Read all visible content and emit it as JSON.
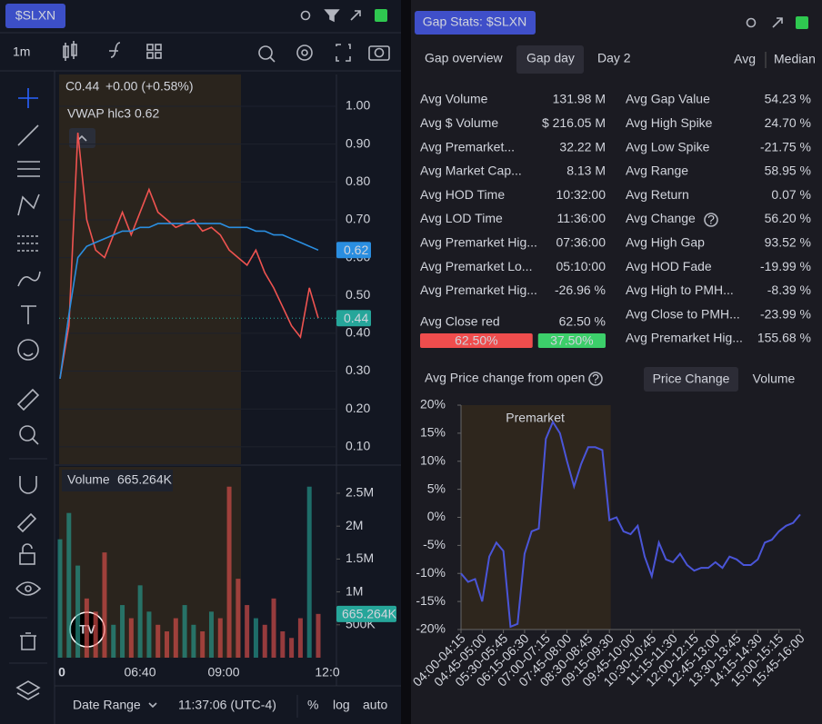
{
  "left": {
    "ticker": "$SLXN",
    "interval": "1m",
    "legend_c": "C",
    "legend_close": "0.44",
    "legend_change": "+0.00 (+0.58%)",
    "vwap_label": "VWAP hlc3",
    "vwap_value": "0.62",
    "volume_label": "Volume",
    "volume_value": "665.264K",
    "price": {
      "type": "line",
      "ylim": [
        0.054,
        1.084
      ],
      "yticks": [
        {
          "value": 0.1,
          "label": "0.10"
        },
        {
          "value": 0.2,
          "label": "0.20"
        },
        {
          "value": 0.3,
          "label": "0.30"
        },
        {
          "value": 0.4,
          "label": "0.40"
        },
        {
          "value": 0.5,
          "label": "0.50"
        },
        {
          "value": 0.6,
          "label": "0.60"
        },
        {
          "value": 0.7,
          "label": "0.70"
        },
        {
          "value": 0.8,
          "label": "0.80"
        },
        {
          "value": 0.9,
          "label": "0.90"
        },
        {
          "value": 1.0,
          "label": "1.00"
        }
      ],
      "close": [
        0.28,
        0.42,
        0.93,
        0.7,
        0.62,
        0.6,
        0.66,
        0.72,
        0.66,
        0.72,
        0.78,
        0.72,
        0.7,
        0.68,
        0.69,
        0.7,
        0.67,
        0.68,
        0.66,
        0.62,
        0.6,
        0.58,
        0.62,
        0.56,
        0.52,
        0.47,
        0.42,
        0.39,
        0.52,
        0.44
      ],
      "vwap": [
        0.28,
        0.45,
        0.6,
        0.63,
        0.64,
        0.65,
        0.66,
        0.67,
        0.67,
        0.68,
        0.68,
        0.69,
        0.69,
        0.69,
        0.69,
        0.69,
        0.69,
        0.69,
        0.69,
        0.68,
        0.68,
        0.68,
        0.67,
        0.67,
        0.66,
        0.66,
        0.65,
        0.64,
        0.63,
        0.62
      ],
      "price_color": "#ef5350",
      "vwap_color": "#2a8ee0",
      "last_close_label": "0.44",
      "last_vwap_label": "0.62"
    },
    "volume": {
      "type": "bar",
      "ylim": [
        0,
        2900000
      ],
      "yticks": [
        {
          "value": 500000,
          "label": "500K"
        },
        {
          "value": 1000000,
          "label": "1M"
        },
        {
          "value": 1500000,
          "label": "1.5M"
        },
        {
          "value": 2000000,
          "label": "2M"
        },
        {
          "value": 2500000,
          "label": "2.5M"
        }
      ],
      "values": [
        1800000,
        2200000,
        1400000,
        900000,
        700000,
        1600000,
        500000,
        800000,
        600000,
        1100000,
        700000,
        500000,
        400000,
        600000,
        800000,
        500000,
        400000,
        700000,
        600000,
        2600000,
        1200000,
        800000,
        600000,
        500000,
        900000,
        400000,
        300000,
        600000,
        2600000,
        665264
      ],
      "up_color": "#26a69a",
      "down_color": "#ef5350",
      "last_label": "665.264K"
    },
    "xticks": [
      "0",
      "06:40",
      "09:00",
      "12:0"
    ],
    "footer": {
      "date_range": "Date Range",
      "time": "11:37:06 (UTC-4)",
      "percent": "%",
      "log": "log",
      "auto": "auto"
    }
  },
  "right": {
    "title": "Gap Stats: $SLXN",
    "tabs": [
      "Gap overview",
      "Gap day",
      "Day 2"
    ],
    "modes": [
      "Avg",
      "Median"
    ],
    "stats_left": [
      {
        "label": "Avg Volume",
        "value": "131.98 M"
      },
      {
        "label": "Avg $ Volume",
        "value": "$ 216.05 M"
      },
      {
        "label": "Avg Premarket...",
        "value": "32.22 M"
      },
      {
        "label": "Avg Market Cap...",
        "value": "8.13 M"
      },
      {
        "label": "Avg HOD Time",
        "value": "10:32:00"
      },
      {
        "label": "Avg LOD Time",
        "value": "11:36:00"
      },
      {
        "label": "Avg Premarket Hig...",
        "value": "07:36:00"
      },
      {
        "label": "Avg Premarket Lo...",
        "value": "05:10:00"
      },
      {
        "label": "Avg Premarket Hig...",
        "value": "-26.96 %",
        "color": "#f05454"
      }
    ],
    "close_red": {
      "label": "Avg Close red",
      "value": "62.50 %",
      "split": [
        {
          "value": 62.5,
          "label": "62.50%",
          "color": "#ef4d4d"
        },
        {
          "value": 37.5,
          "label": "37.50%",
          "color": "#3ccf6a"
        }
      ]
    },
    "stats_right": [
      {
        "label": "Avg Gap Value",
        "value": "54.23 %",
        "color": "#3fcf8e"
      },
      {
        "label": "Avg High Spike",
        "value": "24.70 %",
        "color": "#3fcf8e"
      },
      {
        "label": "Avg Low Spike",
        "value": "-21.75 %",
        "color": "#f05454"
      },
      {
        "label": "Avg Range",
        "value": "58.95 %",
        "color": "#3fcf8e"
      },
      {
        "label": "Avg Return",
        "value": "0.07 %",
        "color": "#3fcf8e"
      },
      {
        "label": "Avg Change",
        "value": "56.20 %",
        "color": "#3fcf8e"
      },
      {
        "label": "Avg High Gap",
        "value": "93.52 %",
        "color": "#3fcf8e"
      },
      {
        "label": "Avg HOD Fade",
        "value": "-19.99 %",
        "color": "#f05454"
      },
      {
        "label": "Avg High to PMH...",
        "value": "-8.39 %",
        "color": "#f05454"
      },
      {
        "label": "Avg Close to PMH...",
        "value": "-23.99 %",
        "color": "#f05454"
      },
      {
        "label": "Avg Premarket Hig...",
        "value": "155.68 %",
        "color": "#3fcf8e"
      }
    ],
    "chart_title": "Avg Price change from open",
    "chart_buttons": [
      "Price Change",
      "Volume"
    ],
    "chart": {
      "type": "line",
      "annotation": "Premarket",
      "color": "#4a55d8",
      "ylim": [
        -20,
        20
      ],
      "yticks": [
        {
          "value": -20,
          "label": "-20%"
        },
        {
          "value": -15,
          "label": "-15%"
        },
        {
          "value": -10,
          "label": "-10%"
        },
        {
          "value": -5,
          "label": "-5%"
        },
        {
          "value": 0,
          "label": "0%"
        },
        {
          "value": 5,
          "label": "5%"
        },
        {
          "value": 10,
          "label": "10%"
        },
        {
          "value": 15,
          "label": "15%"
        },
        {
          "value": 20,
          "label": "20%"
        }
      ],
      "categories": [
        "04:00-04:15",
        null,
        null,
        "04:45-05:00",
        null,
        null,
        "05:30-05:45",
        null,
        null,
        "06:15-06:30",
        null,
        null,
        "07:00-07:15",
        null,
        null,
        "07:45-08:00",
        null,
        null,
        "08:30-08:45",
        null,
        null,
        "09:15-09:30",
        null,
        null,
        "09:45-10:00",
        null,
        null,
        "10:30-10:45",
        null,
        null,
        "11:15-11:30",
        null,
        null,
        "12:00-12:15",
        null,
        null,
        "12:45-13:00",
        null,
        null,
        "13:30-13:45",
        null,
        null,
        "14:15-14:30",
        null,
        null,
        "15:00-15:15",
        null,
        null,
        "15:45-16:00"
      ],
      "values": [
        -10,
        -11.5,
        -11,
        -15,
        -7,
        -4.5,
        -6,
        -19.5,
        -19,
        -6.5,
        -2.5,
        -2,
        14,
        17,
        15,
        10,
        5.5,
        9.5,
        12.5,
        12.5,
        12,
        -0.5,
        0,
        -2.5,
        -3,
        -1.5,
        -7,
        -10.5,
        -4.5,
        -7.5,
        -8,
        -6.5,
        -8.5,
        -9.5,
        -9,
        -9,
        -8,
        -9,
        -7,
        -7.5,
        -8.5,
        -8.5,
        -7.5,
        -4.5,
        -4,
        -2.5,
        -1.5,
        -1,
        0.5
      ]
    }
  }
}
